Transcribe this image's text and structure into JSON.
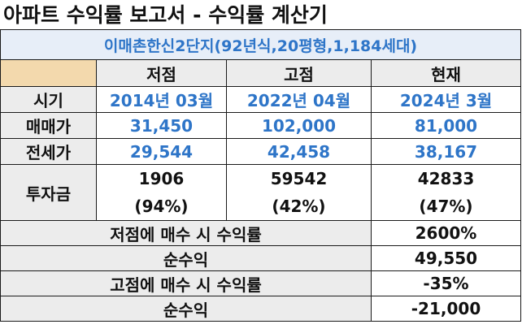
{
  "title": "아파트 수익률 보고서 - 수익률 계산기",
  "subtitle": "이매촌한신2단지(92년식,20평형,1,184세대)",
  "headers": [
    "저점",
    "고점",
    "현재"
  ],
  "rows": {
    "period": {
      "label": "시기",
      "values": [
        "2014년 03월",
        "2022년 04월",
        "2024년 3월"
      ]
    },
    "sale_price": {
      "label": "매매가",
      "values": [
        "31,450",
        "102,000",
        "81,000"
      ]
    },
    "jeonse_price": {
      "label": "전세가",
      "values": [
        "29,544",
        "42,458",
        "38,167"
      ]
    },
    "investment": {
      "label": "투자금",
      "values": [
        "1906",
        "59542",
        "42833"
      ],
      "ratios": [
        "(94%)",
        "(42%)",
        "(47%)"
      ]
    }
  },
  "summary": [
    {
      "label": "저점에 매수 시 수익률",
      "value": "2600%"
    },
    {
      "label": "순수익",
      "value": "49,550"
    },
    {
      "label": "고점에 매수 시 수익률",
      "value": "-35%"
    },
    {
      "label": "순수익",
      "value": "-21,000"
    }
  ]
}
